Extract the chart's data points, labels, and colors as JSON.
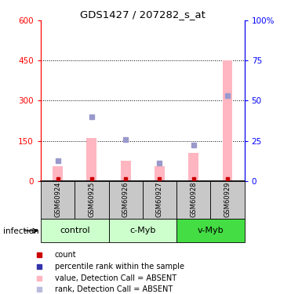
{
  "title": "GDS1427 / 207282_s_at",
  "samples": [
    "GSM60924",
    "GSM60925",
    "GSM60926",
    "GSM60927",
    "GSM60928",
    "GSM60929"
  ],
  "bar_values": [
    55,
    160,
    75,
    55,
    105,
    450
  ],
  "bar_color": "#FFB6C1",
  "rank_dots_left_scale": [
    75,
    240,
    155,
    65,
    135,
    320
  ],
  "rank_dot_color": "#9999CC",
  "count_dot_color": "#CC0000",
  "ylim_left": [
    0,
    600
  ],
  "ylim_right": [
    0,
    100
  ],
  "yticks_left": [
    0,
    150,
    300,
    450,
    600
  ],
  "yticks_right": [
    0,
    25,
    50,
    75,
    100
  ],
  "ytick_labels_right": [
    "0",
    "25",
    "50",
    "75",
    "100%"
  ],
  "dotted_lines": [
    150,
    300,
    450
  ],
  "infection_label": "infection",
  "group_labels": [
    "control",
    "c-Myb",
    "v-Myb"
  ],
  "group_colors": [
    "#CCFFCC",
    "#CCFFCC",
    "#44DD44"
  ],
  "sample_bg_color": "#C8C8C8",
  "bar_width": 0.3
}
